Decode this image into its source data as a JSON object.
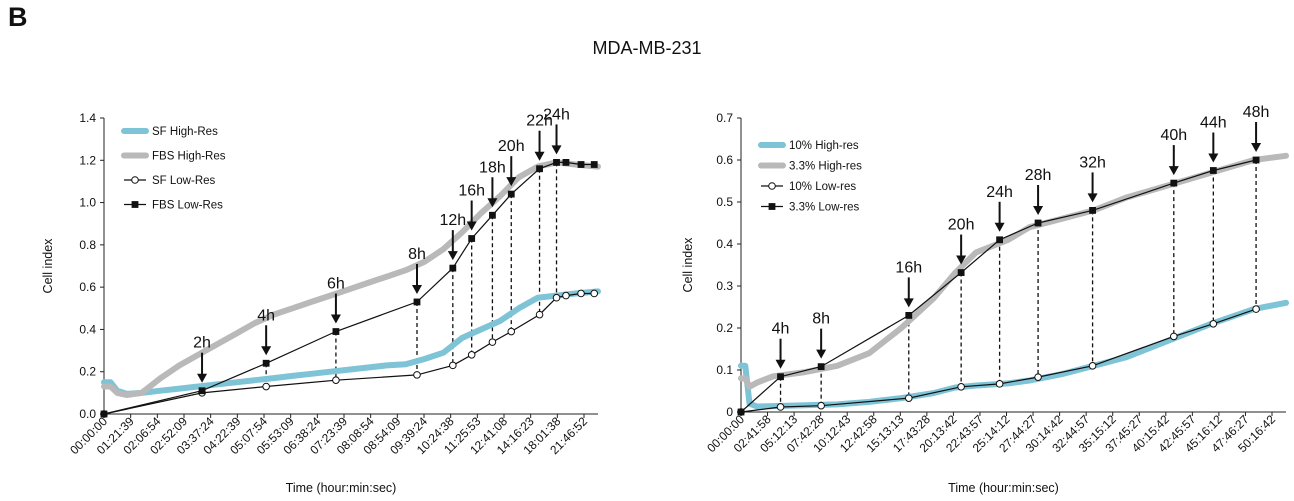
{
  "panel_letter": "B",
  "figure_title": "MDA-MB-231",
  "chart_data": [
    {
      "type": "line",
      "xlabel": "Time (hour:min:sec)",
      "ylabel": "Cell index",
      "xlim": [
        0,
        26.2
      ],
      "ylim": [
        0,
        1.4
      ],
      "yticks": [
        "0.0",
        "0.2",
        "0.4",
        "0.6",
        "0.8",
        "1.0",
        "1.2",
        "1.4"
      ],
      "xticks": [
        "00:00:00",
        "01:21:39",
        "02:06:54",
        "02:52:09",
        "03:37:24",
        "04:22:39",
        "05:07:54",
        "05:53:09",
        "06:38:24",
        "07:23:39",
        "08:08:54",
        "08:54:09",
        "09:39:24",
        "10:24:38",
        "11:25:53",
        "12:41:08",
        "14:16:23",
        "18:01:38",
        "21:46:52"
      ],
      "legend": {
        "position": "top-left",
        "entries": [
          "SF High-Res",
          "FBS High-Res",
          "SF Low-Res",
          "FBS Low-Res"
        ]
      },
      "series": [
        {
          "name": "SF High-Res",
          "style": "high-res",
          "color": "#7ec4d6",
          "x": [
            0.0,
            0.35,
            0.7,
            1.2,
            2,
            3,
            4,
            5,
            6,
            7,
            8,
            9,
            10,
            11,
            12,
            13,
            14,
            15,
            16,
            17,
            18,
            19,
            20,
            21,
            22,
            23,
            24,
            25,
            26.2
          ],
          "y": [
            0.15,
            0.15,
            0.11,
            0.095,
            0.1,
            0.11,
            0.12,
            0.13,
            0.14,
            0.15,
            0.16,
            0.17,
            0.18,
            0.19,
            0.2,
            0.21,
            0.22,
            0.23,
            0.235,
            0.26,
            0.29,
            0.36,
            0.4,
            0.44,
            0.5,
            0.55,
            0.56,
            0.57,
            0.58
          ]
        },
        {
          "name": "FBS High-Res",
          "style": "high-res",
          "color": "#b9b9b9",
          "x": [
            0.0,
            0.35,
            0.7,
            1.2,
            2,
            3,
            4,
            5,
            6,
            7,
            8,
            9,
            10,
            11,
            12,
            13,
            14,
            15,
            16,
            17,
            18,
            19,
            20,
            21,
            22,
            23,
            24,
            25,
            26.2
          ],
          "y": [
            0.13,
            0.13,
            0.1,
            0.09,
            0.1,
            0.17,
            0.23,
            0.28,
            0.33,
            0.38,
            0.43,
            0.47,
            0.5,
            0.53,
            0.56,
            0.59,
            0.62,
            0.65,
            0.68,
            0.72,
            0.78,
            0.86,
            0.95,
            1.03,
            1.12,
            1.17,
            1.19,
            1.18,
            1.17
          ]
        },
        {
          "name": "SF Low-Res",
          "style": "low-res-open",
          "color": "#111111",
          "x": [
            0.0,
            5.2,
            8.6,
            12.3,
            16.6,
            18.5,
            19.5,
            20.6,
            21.6,
            23.1,
            24.0,
            24.5,
            25.3,
            26.0
          ],
          "y": [
            0.0,
            0.1,
            0.13,
            0.16,
            0.185,
            0.23,
            0.28,
            0.34,
            0.39,
            0.47,
            0.55,
            0.56,
            0.57,
            0.57
          ]
        },
        {
          "name": "FBS Low-Res",
          "style": "low-res-filled",
          "color": "#111111",
          "x": [
            0.0,
            5.2,
            8.6,
            12.3,
            16.6,
            18.5,
            19.5,
            20.6,
            21.6,
            23.1,
            24.0,
            24.5,
            25.3,
            26.0
          ],
          "y": [
            0.0,
            0.11,
            0.24,
            0.39,
            0.53,
            0.69,
            0.83,
            0.94,
            1.04,
            1.16,
            1.19,
            1.19,
            1.18,
            1.18
          ]
        }
      ],
      "annotations": [
        {
          "label": "2h",
          "x": 5.2,
          "y_top": 0.11,
          "y_bottom": 0.1
        },
        {
          "label": "4h",
          "x": 8.6,
          "y_top": 0.24,
          "y_bottom": 0.13
        },
        {
          "label": "6h",
          "x": 12.3,
          "y_top": 0.39,
          "y_bottom": 0.16
        },
        {
          "label": "8h",
          "x": 16.6,
          "y_top": 0.53,
          "y_bottom": 0.185
        },
        {
          "label": "12h",
          "x": 18.5,
          "y_top": 0.69,
          "y_bottom": 0.23
        },
        {
          "label": "16h",
          "x": 19.5,
          "y_top": 0.83,
          "y_bottom": 0.28
        },
        {
          "label": "18h",
          "x": 20.6,
          "y_top": 0.94,
          "y_bottom": 0.34
        },
        {
          "label": "20h",
          "x": 21.6,
          "y_top": 1.04,
          "y_bottom": 0.39
        },
        {
          "label": "22h",
          "x": 23.1,
          "y_top": 1.16,
          "y_bottom": 0.47
        },
        {
          "label": "24h",
          "x": 24.0,
          "y_top": 1.19,
          "y_bottom": 0.55
        }
      ]
    },
    {
      "type": "line",
      "xlabel": "Time (hour:min:sec)",
      "ylabel": "Cell index",
      "xlim": [
        0,
        51
      ],
      "ylim": [
        0,
        0.7
      ],
      "yticks": [
        "0",
        "0.1",
        "0.2",
        "0.3",
        "0.4",
        "0.5",
        "0.6",
        "0.7"
      ],
      "xticks": [
        "00:00:00",
        "02:41:58",
        "05:12:13",
        "07:42:28",
        "10:12:43",
        "12:42:58",
        "15:13:13",
        "17:43:28",
        "20:13:42",
        "22:43:57",
        "25:14:12",
        "27:44:27",
        "30:14:42",
        "32:44:57",
        "35:15:12",
        "37:45:27",
        "40:15:42",
        "42:45:57",
        "45:16:12",
        "47:46:27",
        "50:16:42"
      ],
      "legend": {
        "position": "top-left",
        "entries": [
          "10% High-res",
          "3.3% High-res",
          "10% Low-res",
          "3.3% Low-res"
        ]
      },
      "series": [
        {
          "name": "10% High-res",
          "style": "high-res",
          "color": "#7ec4d6",
          "x": [
            0.0,
            0.4,
            0.8,
            1.5,
            3,
            6,
            9,
            12,
            15,
            18,
            20,
            22,
            25,
            27,
            30,
            33,
            36,
            40,
            44,
            48,
            51
          ],
          "y": [
            0.11,
            0.11,
            0.02,
            0.013,
            0.014,
            0.016,
            0.018,
            0.024,
            0.033,
            0.045,
            0.058,
            0.063,
            0.068,
            0.075,
            0.09,
            0.11,
            0.13,
            0.17,
            0.21,
            0.245,
            0.26
          ]
        },
        {
          "name": "3.3% High-res",
          "style": "high-res",
          "color": "#b9b9b9",
          "x": [
            0.0,
            0.4,
            0.8,
            1.5,
            3,
            6,
            9,
            12,
            15,
            18,
            20,
            22,
            25,
            27,
            30,
            33,
            36,
            40,
            44,
            48,
            51
          ],
          "y": [
            0.08,
            0.08,
            0.06,
            0.07,
            0.085,
            0.095,
            0.11,
            0.14,
            0.2,
            0.27,
            0.33,
            0.38,
            0.41,
            0.44,
            0.46,
            0.48,
            0.51,
            0.54,
            0.57,
            0.6,
            0.61
          ]
        },
        {
          "name": "10% Low-res",
          "style": "low-res-open",
          "color": "#111111",
          "x": [
            0.0,
            3.7,
            7.5,
            15.7,
            20.6,
            24.2,
            27.8,
            32.9,
            40.5,
            44.2,
            48.2
          ],
          "y": [
            0.0,
            0.012,
            0.015,
            0.033,
            0.06,
            0.067,
            0.083,
            0.11,
            0.18,
            0.21,
            0.245
          ]
        },
        {
          "name": "3.3% Low-res",
          "style": "low-res-filled",
          "color": "#111111",
          "x": [
            0.0,
            3.7,
            7.5,
            15.7,
            20.6,
            24.2,
            27.8,
            32.9,
            40.5,
            44.2,
            48.2
          ],
          "y": [
            0.0,
            0.084,
            0.108,
            0.23,
            0.332,
            0.41,
            0.45,
            0.48,
            0.545,
            0.575,
            0.6
          ]
        }
      ],
      "annotations": [
        {
          "label": "4h",
          "x": 3.7,
          "y_top": 0.084,
          "y_bottom": 0.012
        },
        {
          "label": "8h",
          "x": 7.5,
          "y_top": 0.108,
          "y_bottom": 0.015
        },
        {
          "label": "16h",
          "x": 15.7,
          "y_top": 0.23,
          "y_bottom": 0.033
        },
        {
          "label": "20h",
          "x": 20.6,
          "y_top": 0.332,
          "y_bottom": 0.06
        },
        {
          "label": "24h",
          "x": 24.2,
          "y_top": 0.41,
          "y_bottom": 0.067
        },
        {
          "label": "28h",
          "x": 27.8,
          "y_top": 0.45,
          "y_bottom": 0.083
        },
        {
          "label": "32h",
          "x": 32.9,
          "y_top": 0.48,
          "y_bottom": 0.11
        },
        {
          "label": "40h",
          "x": 40.5,
          "y_top": 0.545,
          "y_bottom": 0.18
        },
        {
          "label": "44h",
          "x": 44.2,
          "y_top": 0.575,
          "y_bottom": 0.21
        },
        {
          "label": "48h",
          "x": 48.2,
          "y_top": 0.6,
          "y_bottom": 0.245
        }
      ]
    }
  ]
}
